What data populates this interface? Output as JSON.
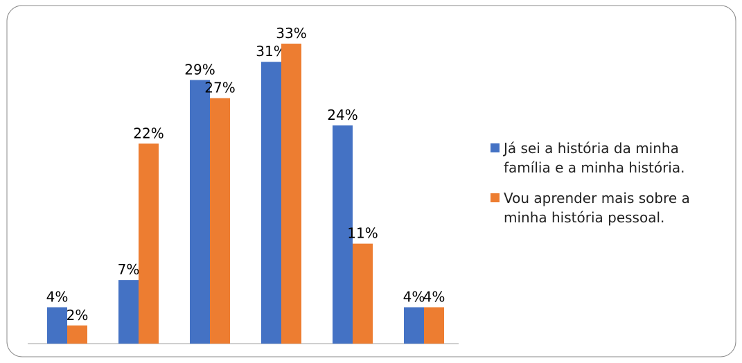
{
  "chart_data": {
    "type": "bar",
    "categories": [
      null,
      null,
      null,
      null,
      null,
      null
    ],
    "series": [
      {
        "name": "Já sei a história da minha família e a minha história.",
        "color": "#4472c4",
        "values": [
          4,
          7,
          29,
          31,
          24,
          4
        ],
        "value_labels": [
          "4%",
          "7%",
          "29%",
          "31%",
          "24%",
          "4%"
        ]
      },
      {
        "name": "Vou aprender mais sobre a minha história pessoal.",
        "color": "#ed7d31",
        "values": [
          2,
          22,
          27,
          33,
          11,
          4
        ],
        "value_labels": [
          "2%",
          "22%",
          "27%",
          "33%",
          "11%",
          "4%"
        ]
      }
    ],
    "ylim": [
      0,
      33
    ],
    "legend": "right"
  }
}
